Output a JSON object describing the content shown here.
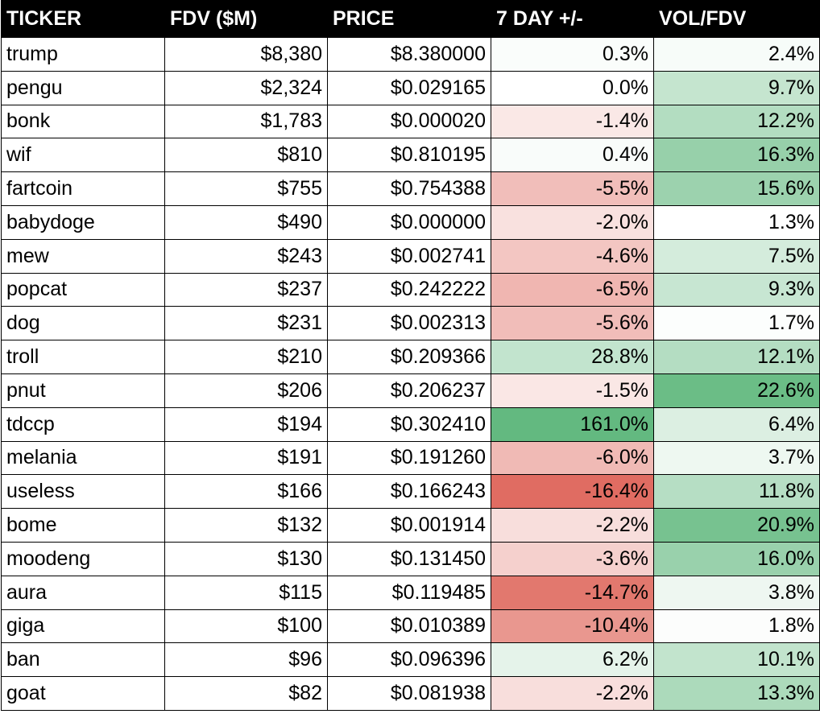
{
  "chart_data": {
    "type": "table",
    "columns": [
      "TICKER",
      "FDV ($M)",
      "PRICE",
      "7 DAY +/-",
      "VOL/FDV"
    ],
    "rows": [
      {
        "ticker": "trump",
        "fdv": "$8,380",
        "price": "$8.380000",
        "change": "0.3%",
        "vol_fdv": "2.4%",
        "change_value": 0.3,
        "vol_fdv_value": 2.4
      },
      {
        "ticker": "pengu",
        "fdv": "$2,324",
        "price": "$0.029165",
        "change": "0.0%",
        "vol_fdv": "9.7%",
        "change_value": 0.0,
        "vol_fdv_value": 9.7
      },
      {
        "ticker": "bonk",
        "fdv": "$1,783",
        "price": "$0.000020",
        "change": "-1.4%",
        "vol_fdv": "12.2%",
        "change_value": -1.4,
        "vol_fdv_value": 12.2
      },
      {
        "ticker": "wif",
        "fdv": "$810",
        "price": "$0.810195",
        "change": "0.4%",
        "vol_fdv": "16.3%",
        "change_value": 0.4,
        "vol_fdv_value": 16.3
      },
      {
        "ticker": "fartcoin",
        "fdv": "$755",
        "price": "$0.754388",
        "change": "-5.5%",
        "vol_fdv": "15.6%",
        "change_value": -5.5,
        "vol_fdv_value": 15.6
      },
      {
        "ticker": "babydoge",
        "fdv": "$490",
        "price": "$0.000000",
        "change": "-2.0%",
        "vol_fdv": "1.3%",
        "change_value": -2.0,
        "vol_fdv_value": 1.3
      },
      {
        "ticker": "mew",
        "fdv": "$243",
        "price": "$0.002741",
        "change": "-4.6%",
        "vol_fdv": "7.5%",
        "change_value": -4.6,
        "vol_fdv_value": 7.5
      },
      {
        "ticker": "popcat",
        "fdv": "$237",
        "price": "$0.242222",
        "change": "-6.5%",
        "vol_fdv": "9.3%",
        "change_value": -6.5,
        "vol_fdv_value": 9.3
      },
      {
        "ticker": "dog",
        "fdv": "$231",
        "price": "$0.002313",
        "change": "-5.6%",
        "vol_fdv": "1.7%",
        "change_value": -5.6,
        "vol_fdv_value": 1.7
      },
      {
        "ticker": "troll",
        "fdv": "$210",
        "price": "$0.209366",
        "change": "28.8%",
        "vol_fdv": "12.1%",
        "change_value": 28.8,
        "vol_fdv_value": 12.1
      },
      {
        "ticker": "pnut",
        "fdv": "$206",
        "price": "$0.206237",
        "change": "-1.5%",
        "vol_fdv": "22.6%",
        "change_value": -1.5,
        "vol_fdv_value": 22.6
      },
      {
        "ticker": "tdccp",
        "fdv": "$194",
        "price": "$0.302410",
        "change": "161.0%",
        "vol_fdv": "6.4%",
        "change_value": 161.0,
        "vol_fdv_value": 6.4
      },
      {
        "ticker": "melania",
        "fdv": "$191",
        "price": "$0.191260",
        "change": "-6.0%",
        "vol_fdv": "3.7%",
        "change_value": -6.0,
        "vol_fdv_value": 3.7
      },
      {
        "ticker": "useless",
        "fdv": "$166",
        "price": "$0.166243",
        "change": "-16.4%",
        "vol_fdv": "11.8%",
        "change_value": -16.4,
        "vol_fdv_value": 11.8
      },
      {
        "ticker": "bome",
        "fdv": "$132",
        "price": "$0.001914",
        "change": "-2.2%",
        "vol_fdv": "20.9%",
        "change_value": -2.2,
        "vol_fdv_value": 20.9
      },
      {
        "ticker": "moodeng",
        "fdv": "$130",
        "price": "$0.131450",
        "change": "-3.6%",
        "vol_fdv": "16.0%",
        "change_value": -3.6,
        "vol_fdv_value": 16.0
      },
      {
        "ticker": "aura",
        "fdv": "$115",
        "price": "$0.119485",
        "change": "-14.7%",
        "vol_fdv": "3.8%",
        "change_value": -14.7,
        "vol_fdv_value": 3.8
      },
      {
        "ticker": "giga",
        "fdv": "$100",
        "price": "$0.010389",
        "change": "-10.4%",
        "vol_fdv": "1.8%",
        "change_value": -10.4,
        "vol_fdv_value": 1.8
      },
      {
        "ticker": "ban",
        "fdv": "$96",
        "price": "$0.096396",
        "change": "6.2%",
        "vol_fdv": "10.1%",
        "change_value": 6.2,
        "vol_fdv_value": 10.1
      },
      {
        "ticker": "goat",
        "fdv": "$82",
        "price": "$0.081938",
        "change": "-2.2%",
        "vol_fdv": "13.3%",
        "change_value": -2.2,
        "vol_fdv_value": 13.3
      }
    ],
    "colors": {
      "header_bg": "#000000",
      "header_text": "#ffffff",
      "positive": "#63b980",
      "negative": "#e06c62",
      "neutral": "#ffffff",
      "border": "#000000"
    }
  }
}
